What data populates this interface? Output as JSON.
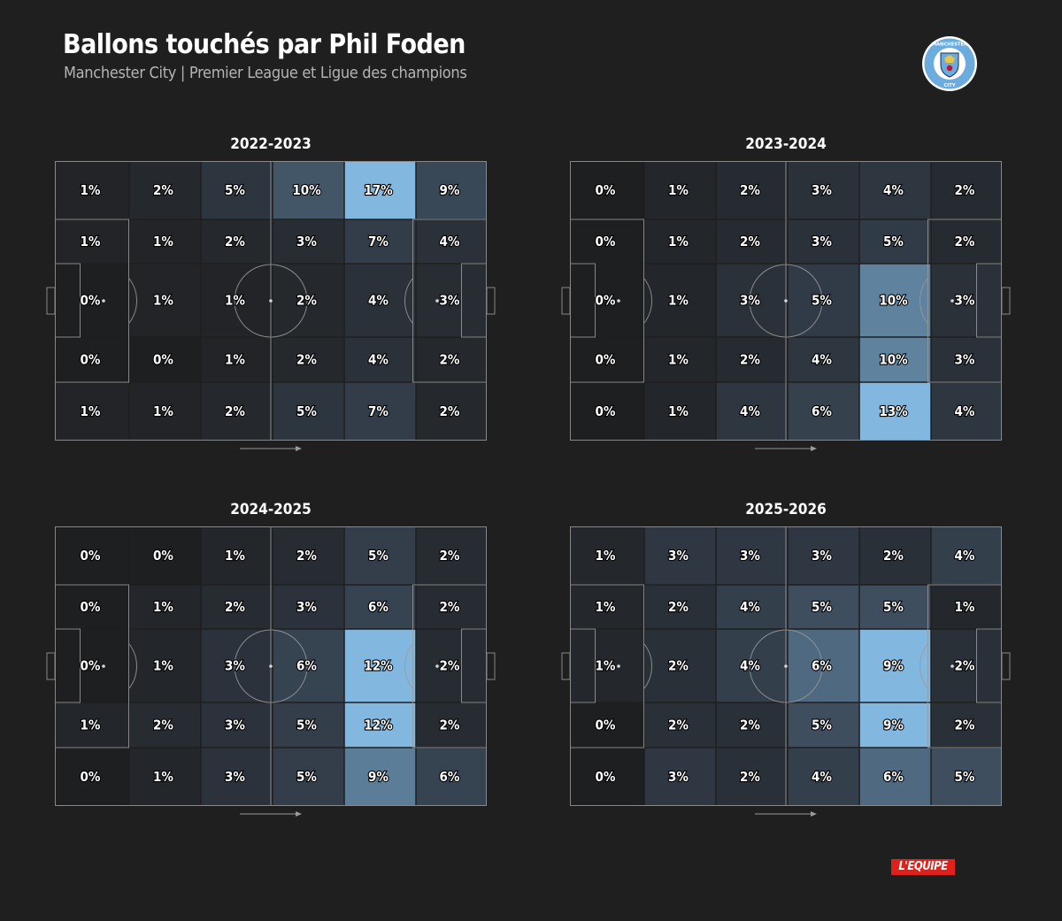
{
  "title": "Ballons touchés par Phil Foden",
  "subtitle": "Manchester City | Premier League et Ligue des champions",
  "logo": {
    "name": "manchester-city-crest",
    "text_top": "MANCHESTER",
    "text_bottom": "CITY",
    "colors": {
      "ring": "#6cabdd",
      "inner": "#ffffff",
      "shield": "#6cabdd"
    }
  },
  "publisher": "L'EQUIPE",
  "colors": {
    "background": "#1f1f1f",
    "low": "#1e1f21",
    "high": "#82b8e0",
    "lines": "#9a9a9a"
  },
  "chart_data": [
    {
      "type": "heatmap",
      "title": "2022-2023",
      "values": [
        [
          1,
          2,
          5,
          10,
          17,
          9
        ],
        [
          1,
          1,
          2,
          3,
          7,
          4
        ],
        [
          0,
          1,
          1,
          2,
          4,
          3
        ],
        [
          0,
          0,
          1,
          2,
          4,
          2
        ],
        [
          1,
          1,
          2,
          5,
          7,
          2
        ]
      ],
      "unit": "%"
    },
    {
      "type": "heatmap",
      "title": "2023-2024",
      "values": [
        [
          0,
          1,
          2,
          3,
          4,
          2
        ],
        [
          0,
          1,
          2,
          3,
          5,
          2
        ],
        [
          0,
          1,
          3,
          5,
          10,
          3
        ],
        [
          0,
          1,
          2,
          4,
          10,
          3
        ],
        [
          0,
          1,
          4,
          6,
          13,
          4
        ]
      ],
      "unit": "%"
    },
    {
      "type": "heatmap",
      "title": "2024-2025",
      "values": [
        [
          0,
          0,
          1,
          2,
          5,
          2
        ],
        [
          0,
          1,
          2,
          3,
          6,
          2
        ],
        [
          0,
          1,
          3,
          6,
          12,
          2
        ],
        [
          1,
          2,
          3,
          5,
          12,
          2
        ],
        [
          0,
          1,
          3,
          5,
          9,
          6
        ]
      ],
      "unit": "%"
    },
    {
      "type": "heatmap",
      "title": "2025-2026",
      "values": [
        [
          1,
          3,
          3,
          3,
          2,
          4
        ],
        [
          1,
          2,
          4,
          5,
          5,
          1
        ],
        [
          1,
          2,
          4,
          6,
          9,
          2
        ],
        [
          0,
          2,
          2,
          5,
          9,
          2
        ],
        [
          0,
          3,
          2,
          4,
          6,
          5
        ]
      ],
      "unit": "%"
    }
  ]
}
